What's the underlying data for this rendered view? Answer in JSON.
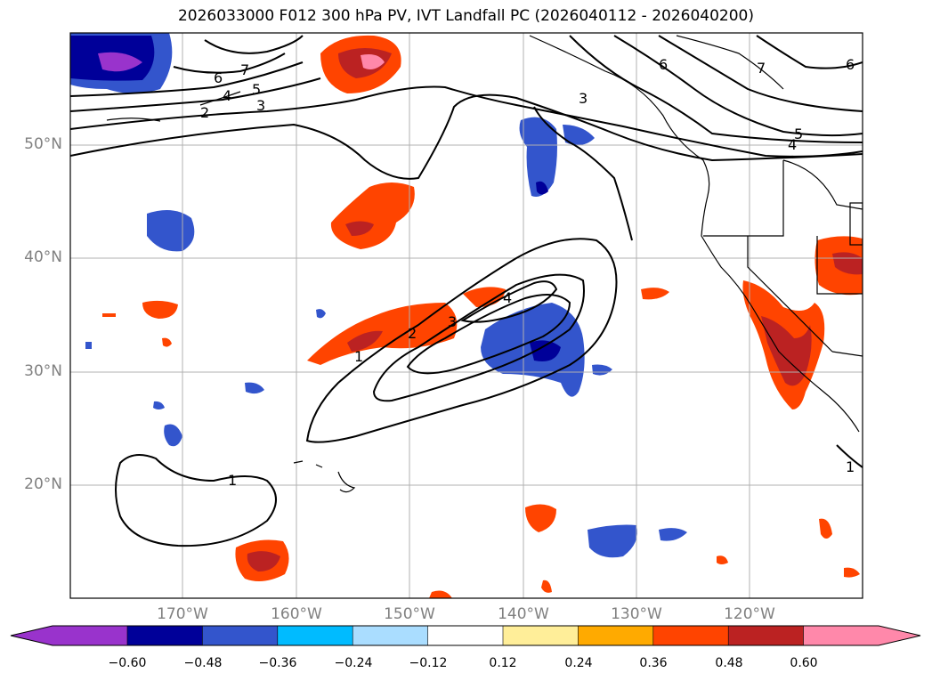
{
  "title": "2026033000 F012 300 hPa PV, IVT Landfall PC (2026040112 - 2026040200)",
  "lat_labels": [
    "50°N",
    "40°N",
    "30°N",
    "20°N"
  ],
  "lon_labels": [
    "170°W",
    "160°W",
    "150°W",
    "140°W",
    "130°W",
    "120°W"
  ],
  "colorbar": {
    "colors": [
      "#9933cc",
      "#000099",
      "#3355cc",
      "#00bbff",
      "#aaddff",
      "#ffffff",
      "#ffee99",
      "#ffaa00",
      "#ff4400",
      "#bb2222",
      "#ff88aa"
    ],
    "tick_labels": [
      "−0.60",
      "−0.48",
      "−0.36",
      "−0.24",
      "−0.12",
      "0.12",
      "0.24",
      "0.36",
      "0.48",
      "0.60"
    ]
  },
  "contour_labels": [
    "7",
    "6",
    "5",
    "4",
    "3",
    "2",
    "3",
    "6",
    "7",
    "6",
    "5",
    "4",
    "4",
    "3",
    "2",
    "1",
    "1",
    "1"
  ]
}
